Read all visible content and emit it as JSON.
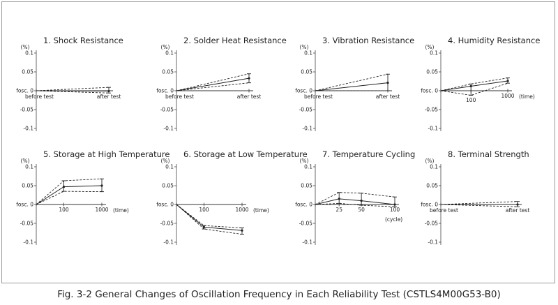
{
  "caption": "Fig. 3-2 General Changes of Oscillation Frequency in Each Reliability Test (CSTLS4M00G53-B0)",
  "chart_data": [
    {
      "type": "line",
      "title": "1. Shock Resistance",
      "unit_label": "(%)",
      "zero_label": "fosc.  0",
      "yticks": [
        "0.1",
        "0.05",
        "0",
        "-0.05",
        "-0.1"
      ],
      "ylim": [
        -0.1,
        0.1
      ],
      "x_labels": [
        "before test",
        "after test"
      ],
      "x_positions": [
        0,
        1
      ],
      "mean": [
        0,
        -0.001
      ],
      "upper": [
        0,
        0.009
      ],
      "lower": [
        0,
        -0.006
      ],
      "xaxis_label": ""
    },
    {
      "type": "line",
      "title": "2. Solder Heat Resistance",
      "unit_label": "(%)",
      "zero_label": "fosc.  0",
      "yticks": [
        "0.1",
        "0.05",
        "0",
        "-0.05",
        "-0.1"
      ],
      "ylim": [
        -0.1,
        0.1
      ],
      "x_labels": [
        "before test",
        "after test"
      ],
      "x_positions": [
        0,
        1
      ],
      "mean": [
        0,
        0.033
      ],
      "upper": [
        0,
        0.045
      ],
      "lower": [
        0,
        0.021
      ],
      "xaxis_label": ""
    },
    {
      "type": "line",
      "title": "3. Vibration Resistance",
      "unit_label": "(%)",
      "zero_label": "fosc.  0",
      "yticks": [
        "0.1",
        "0.05",
        "0",
        "-0.05",
        "-0.1"
      ],
      "ylim": [
        -0.1,
        0.1
      ],
      "x_labels": [
        "before test",
        "after test"
      ],
      "x_positions": [
        0,
        1
      ],
      "mean": [
        0,
        0.021
      ],
      "upper": [
        0,
        0.044
      ],
      "lower": [
        0,
        0.0
      ],
      "xaxis_label": ""
    },
    {
      "type": "line",
      "title": "4. Humidity Resistance",
      "unit_label": "(%)",
      "zero_label": "fosc.  0",
      "yticks": [
        "0.1",
        "0.05",
        "0",
        "-0.05",
        "-0.1"
      ],
      "ylim": [
        -0.1,
        0.1
      ],
      "x_labels": [
        "",
        "100",
        "1000"
      ],
      "x_positions": [
        0,
        0.45,
        1
      ],
      "mean": [
        0,
        0.012,
        0.026
      ],
      "upper": [
        0,
        0.018,
        0.034
      ],
      "lower": [
        0,
        -0.012,
        0.02
      ],
      "xaxis_label": "(time)"
    },
    {
      "type": "line",
      "title": "5. Storage at High Temperature",
      "unit_label": "(%)",
      "zero_label": "fosc.  0",
      "yticks": [
        "0.1",
        "0.05",
        "0",
        "-0.05",
        "-0.1"
      ],
      "ylim": [
        -0.1,
        0.1
      ],
      "x_labels": [
        "",
        "100",
        "1000"
      ],
      "x_positions": [
        0,
        0.42,
        1
      ],
      "mean": [
        0,
        0.047,
        0.05
      ],
      "upper": [
        0,
        0.063,
        0.068
      ],
      "lower": [
        0,
        0.035,
        0.034
      ],
      "xaxis_label": "(time)"
    },
    {
      "type": "line",
      "title": "6. Storage at Low Temperature",
      "unit_label": "(%)",
      "zero_label": "fosc.  0",
      "yticks": [
        "0.1",
        "0.05",
        "0",
        "-0.05",
        "-0.1"
      ],
      "ylim": [
        -0.1,
        0.1
      ],
      "x_labels": [
        "",
        "100",
        "1000"
      ],
      "x_positions": [
        0,
        0.42,
        1
      ],
      "mean": [
        0,
        -0.06,
        -0.069
      ],
      "upper": [
        0,
        -0.056,
        -0.062
      ],
      "lower": [
        0,
        -0.065,
        -0.079
      ],
      "xaxis_label": "(time)"
    },
    {
      "type": "line",
      "title": "7. Temperature Cycling",
      "unit_label": "(%)",
      "zero_label": "fosc.  0",
      "yticks": [
        "0.1",
        "0.05",
        "0",
        "-0.05",
        "-0.1"
      ],
      "ylim": [
        -0.1,
        0.1
      ],
      "x_labels": [
        "",
        "25",
        "50",
        "100"
      ],
      "x_positions": [
        0,
        0.3,
        0.58,
        1
      ],
      "mean": [
        0,
        0.015,
        0.01,
        0.0
      ],
      "upper": [
        0,
        0.032,
        0.03,
        0.02
      ],
      "lower": [
        0,
        0.003,
        -0.002,
        -0.006
      ],
      "xaxis_label": "(cycle)"
    },
    {
      "type": "line",
      "title": "8. Terminal Strength",
      "unit_label": "(%)",
      "zero_label": "fosc.  0",
      "yticks": [
        "0.1",
        "0.05",
        "0",
        "-0.05",
        "-0.1"
      ],
      "ylim": [
        -0.1,
        0.1
      ],
      "x_labels": [
        "before test",
        "after test"
      ],
      "x_positions": [
        0,
        1
      ],
      "mean": [
        0,
        0.0
      ],
      "upper": [
        0,
        0.008
      ],
      "lower": [
        0,
        -0.006
      ],
      "xaxis_label": ""
    }
  ]
}
